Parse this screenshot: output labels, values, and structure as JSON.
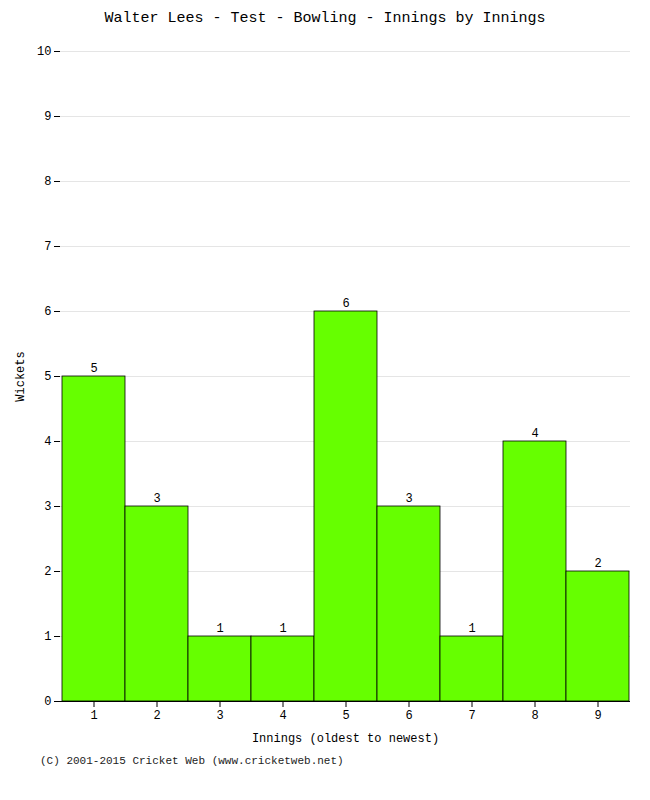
{
  "chart_data": {
    "type": "bar",
    "title": "Walter Lees - Test - Bowling - Innings by Innings",
    "x_label": "Innings (oldest to newest)",
    "y_label": "Wickets",
    "categories": [
      1,
      2,
      3,
      4,
      5,
      6,
      7,
      8,
      9
    ],
    "values": [
      5,
      3,
      1,
      1,
      6,
      3,
      1,
      4,
      2
    ],
    "color": "#66ff00",
    "ylim": [
      0,
      10
    ],
    "yticks": [
      0,
      1,
      2,
      3,
      4,
      5,
      6,
      7,
      8,
      9,
      10
    ],
    "grid": true,
    "data_labels": true,
    "annotations": [
      "(C) 2001-2015 Cricket Web (www.cricketweb.net)"
    ]
  }
}
